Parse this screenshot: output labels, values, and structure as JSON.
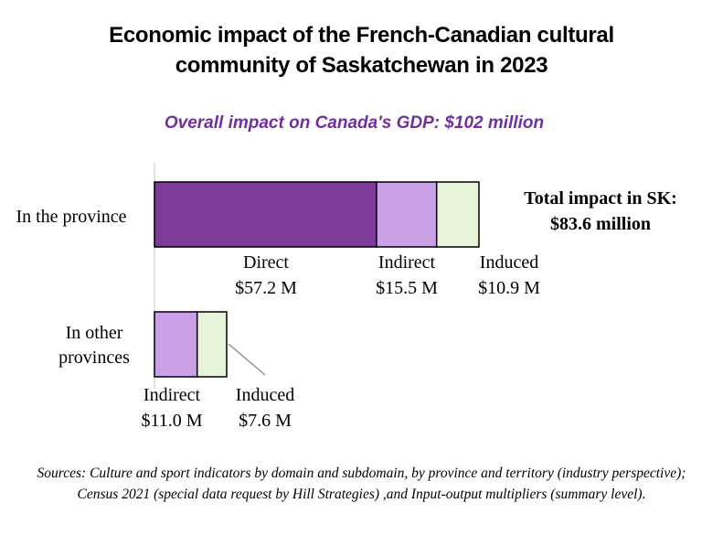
{
  "title_line1": "Economic impact of the French-Canadian cultural",
  "title_line2": "community of Saskatchewan in 2023",
  "subtitle": "Overall impact on Canada's GDP: $102 million",
  "total_label_line1": "Total impact in SK:",
  "total_label_line2": "$83.6 million",
  "source": "Sources: Culture and sport indicators by domain and subdomain, by province and territory (industry perspective); Census 2021 (special data request by Hill Strategies) ,and Input-output multipliers (summary level).",
  "colors": {
    "direct": "#7d3c98",
    "indirect": "#c9a0e6",
    "induced": "#e8f4d9"
  },
  "chart_data": {
    "type": "bar",
    "orientation": "horizontal",
    "stacked": true,
    "unit": "$ million",
    "categories": [
      {
        "label_lines": [
          "In the province"
        ],
        "label_text": "In the province"
      },
      {
        "label_lines": [
          "In other",
          "provinces"
        ],
        "label_text": "In other provinces"
      }
    ],
    "series": [
      {
        "name": "Direct",
        "key": "direct",
        "values": [
          57.2,
          0
        ],
        "value_labels": [
          "$57.2 M",
          ""
        ]
      },
      {
        "name": "Indirect",
        "key": "indirect",
        "values": [
          15.5,
          11.0
        ],
        "value_labels": [
          "$15.5 M",
          "$11.0 M"
        ]
      },
      {
        "name": "Induced",
        "key": "induced",
        "values": [
          10.9,
          7.6
        ],
        "value_labels": [
          "$10.9 M",
          "$7.6 M"
        ]
      }
    ],
    "xlim": [
      0,
      83.6
    ],
    "grid": false
  }
}
